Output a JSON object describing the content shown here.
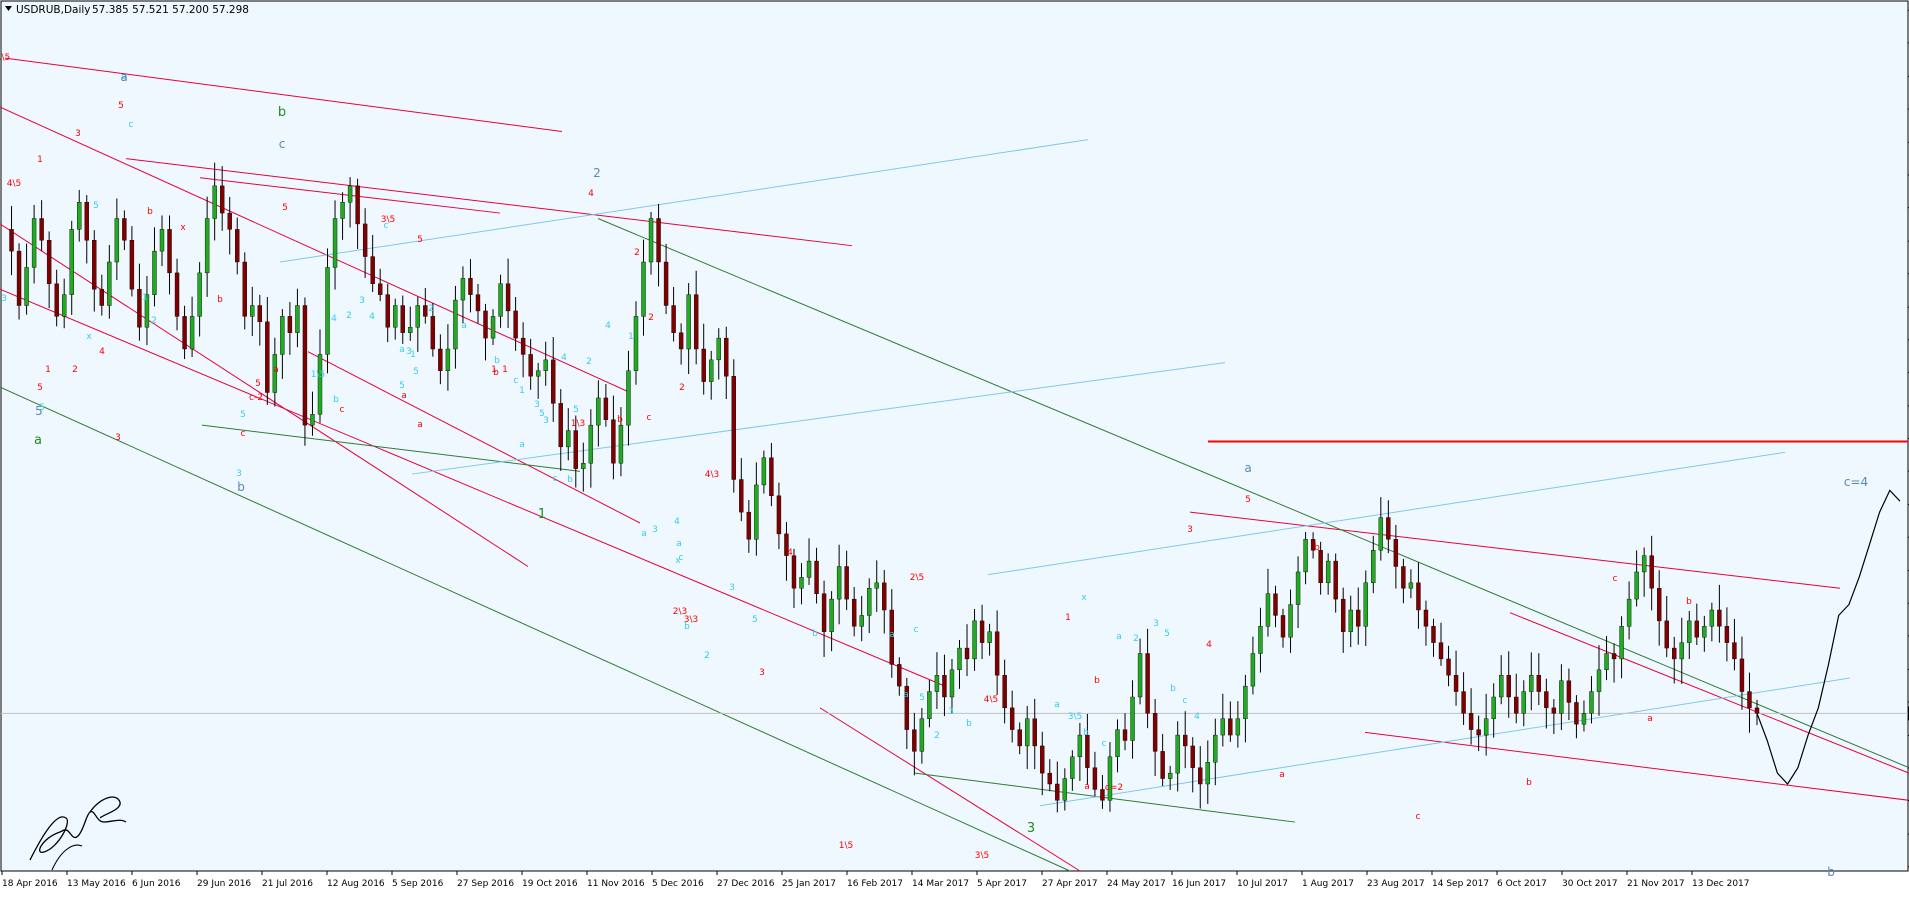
{
  "colors": {
    "background": "#f0f8ff",
    "frame": "#000000",
    "bull_body": "#22aa22",
    "bear_body": "#800000",
    "wick": "#000000",
    "red_trend": "#e8003a",
    "green_trend": "#2e7d32",
    "cyan_trend": "#7fc8e8",
    "horizontal_level": "#ff0000",
    "current_line": "#c0c0c0",
    "price_box": "#000000",
    "label_red": "#ff0000",
    "label_cyan": "#33ccee",
    "label_green": "#228b22",
    "label_steel": "#5a8ab0"
  },
  "header": {
    "symbol": "USDRUB,Daily",
    "ohlc": "57.385 57.521 57.200 57.298"
  },
  "current_price": {
    "value": 57.298,
    "label": "57.298"
  },
  "horizontal_level": {
    "price": 62.3
  },
  "chart_data": {
    "type": "candlestick",
    "symbol": "USDRUB",
    "timeframe": "Daily",
    "ylim": [
      54.4,
      70.4
    ],
    "y_ticks": [
      "70.229",
      "69.629",
      "69.014",
      "68.414",
      "67.799",
      "67.199",
      "66.599",
      "65.984",
      "65.384",
      "64.769",
      "64.169",
      "63.569",
      "62.954",
      "62.354",
      "61.754",
      "61.139",
      "60.539",
      "59.924",
      "59.324",
      "58.724",
      "58.109",
      "57.509",
      "56.894",
      "56.294",
      "55.694",
      "55.079",
      "54.479"
    ],
    "x_labels": [
      "18 Apr 2016",
      "13 May 2016",
      "6 Jun 2016",
      "29 Jun 2016",
      "21 Jul 2016",
      "12 Aug 2016",
      "5 Sep 2016",
      "27 Sep 2016",
      "19 Oct 2016",
      "11 Nov 2016",
      "5 Dec 2016",
      "27 Dec 2016",
      "25 Jan 2017",
      "16 Feb 2017",
      "14 Mar 2017",
      "5 Apr 2017",
      "27 Apr 2017",
      "24 May 2017",
      "16 Jun 2017",
      "10 Jul 2017",
      "1 Aug 2017",
      "23 Aug 2017",
      "14 Sep 2017",
      "6 Oct 2017",
      "30 Oct 2017",
      "21 Nov 2017",
      "13 Dec 2017"
    ],
    "close_path": [
      66.2,
      65.8,
      64.8,
      65.5,
      66.4,
      66.0,
      65.2,
      64.6,
      65.0,
      66.2,
      66.7,
      66.0,
      65.1,
      64.8,
      65.6,
      66.4,
      66.0,
      65.1,
      64.4,
      65.0,
      65.8,
      66.2,
      65.4,
      64.6,
      64.0,
      64.6,
      65.4,
      66.4,
      67.0,
      66.5,
      66.2,
      65.6,
      64.6,
      64.8,
      64.5,
      63.2,
      63.9,
      64.6,
      64.3,
      64.8,
      62.6,
      62.8,
      63.9,
      65.5,
      66.4,
      66.7,
      67.0,
      66.3,
      65.7,
      65.2,
      65.0,
      64.4,
      64.8,
      64.3,
      64.4,
      64.8,
      64.6,
      64.0,
      63.6,
      64.0,
      64.9,
      65.3,
      65.0,
      64.7,
      64.2,
      64.6,
      65.2,
      64.7,
      64.2,
      63.9,
      63.5,
      63.6,
      63.8,
      63.0,
      62.2,
      62.5,
      61.8,
      61.9,
      62.6,
      63.1,
      62.7,
      61.9,
      62.6,
      63.6,
      64.6,
      65.6,
      66.4,
      65.6,
      64.8,
      64.3,
      64.0,
      65.0,
      64.0,
      63.4,
      63.8,
      64.2,
      63.5,
      61.6,
      61.0,
      60.5,
      61.5,
      62.0,
      61.3,
      60.6,
      60.2,
      59.6,
      59.8,
      60.1,
      59.5,
      58.8,
      59.4,
      60.0,
      59.4,
      58.9,
      59.1,
      59.6,
      59.7,
      59.2,
      58.2,
      57.8,
      57.0,
      56.6,
      57.2,
      57.7,
      58.0,
      57.6,
      58.1,
      58.5,
      58.3,
      59.0,
      58.6,
      58.8,
      58.0,
      57.4,
      57.0,
      56.7,
      57.2,
      56.7,
      56.2,
      56.0,
      55.7,
      56.1,
      56.5,
      56.9,
      56.3,
      55.9,
      55.7,
      56.5,
      57.0,
      56.8,
      57.6,
      58.4,
      57.3,
      56.6,
      56.1,
      56.2,
      56.9,
      56.7,
      56.3,
      56.0,
      56.4,
      56.9,
      57.2,
      56.9,
      57.2,
      57.8,
      58.4,
      58.9,
      59.5,
      59.1,
      58.7,
      59.3,
      59.9,
      60.5,
      60.3,
      59.7,
      60.1,
      59.4,
      58.8,
      59.2,
      58.9,
      59.7,
      60.3,
      60.9,
      60.5,
      60.0,
      59.6,
      59.7,
      59.2,
      58.9,
      58.6,
      58.3,
      58.0,
      57.7,
      57.3,
      57.0,
      56.9,
      57.2,
      57.6,
      58.0,
      57.6,
      57.3,
      57.7,
      58.0,
      57.7,
      57.4,
      57.3,
      57.9,
      57.5,
      57.1,
      57.3,
      57.7,
      58.1,
      58.4,
      58.3,
      58.9,
      59.4,
      59.9,
      60.2,
      59.6,
      59.0,
      58.5,
      58.3,
      58.6,
      59.0,
      58.7,
      58.9,
      59.2,
      58.9,
      58.6,
      58.3,
      57.7,
      57.4,
      57.3
    ],
    "projection_path": [
      57.3,
      56.8,
      56.2,
      56.0,
      56.3,
      56.9,
      57.4,
      58.2,
      59.1,
      59.3,
      59.8,
      60.4,
      61.0,
      61.4,
      61.2
    ],
    "wave_labels": {
      "red": [
        "1\\5",
        "5",
        "3",
        "5",
        "1",
        "4\\5",
        "b",
        "x",
        "b",
        "1",
        "5",
        "3",
        "2",
        "4",
        "5",
        "c",
        "a",
        "3\\5",
        "5",
        "a",
        "c",
        "a",
        "c-2",
        "b",
        "1",
        "4",
        "2",
        "2",
        "b",
        "c",
        "2",
        "2\\3",
        "1",
        "1\\3",
        "4\\3",
        "3\\3",
        "4",
        "3",
        "2\\5",
        "1\\5",
        "4\\5",
        "1",
        "b",
        "a",
        "c=2",
        "3\\5",
        "4",
        "3",
        "5",
        "b",
        "a",
        "c",
        "b",
        "c",
        "b",
        "a"
      ],
      "cyan": [
        "5",
        "a",
        "3",
        "5",
        "1",
        "c",
        "x",
        "2",
        "5",
        "3",
        "1\\5",
        "4",
        "2",
        "3",
        "4",
        "c",
        "a",
        "b",
        "5",
        "3",
        "1",
        "5",
        "2",
        "a",
        "b",
        "c",
        "5",
        "3",
        "a",
        "c",
        "b",
        "1",
        "3",
        "4",
        "5",
        "2",
        "4",
        "1",
        "3",
        "c",
        "a",
        "b",
        "a",
        "4",
        "x",
        "2",
        "3",
        "5",
        "b",
        "a",
        "c",
        "a",
        "5",
        "2",
        "3",
        "b",
        "x",
        "a",
        "3\\5",
        "b",
        "c",
        "a",
        "2",
        "3",
        "5",
        "b",
        "c",
        "4"
      ],
      "green": [
        "b",
        "a",
        "3",
        "1"
      ],
      "steel": [
        "a",
        "5",
        "b",
        "c",
        "2",
        "a",
        "c=4",
        "b"
      ]
    }
  }
}
